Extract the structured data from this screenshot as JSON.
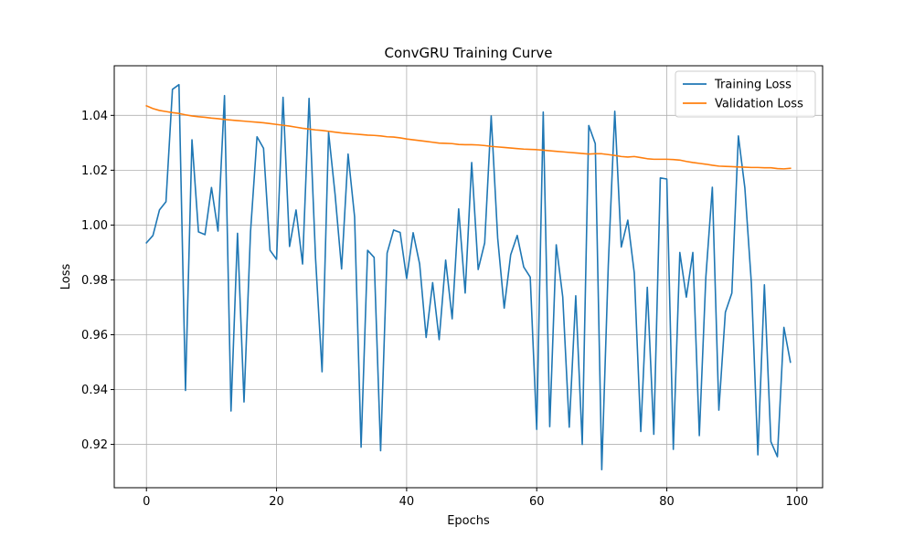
{
  "chart_data": {
    "type": "line",
    "title": "ConvGRU Training Curve",
    "xlabel": "Epochs",
    "ylabel": "Loss",
    "xlim": [
      -4.95,
      103.95
    ],
    "ylim": [
      0.9042,
      1.0581
    ],
    "xticks": [
      0,
      20,
      40,
      60,
      80,
      100
    ],
    "yticks": [
      0.92,
      0.94,
      0.96,
      0.98,
      1.0,
      1.02,
      1.04
    ],
    "ytick_labels": [
      "0.92",
      "0.94",
      "0.96",
      "0.98",
      "1.00",
      "1.02",
      "1.04"
    ],
    "grid": true,
    "legend_position": "top-right",
    "x": [
      0,
      1,
      2,
      3,
      4,
      5,
      6,
      7,
      8,
      9,
      10,
      11,
      12,
      13,
      14,
      15,
      16,
      17,
      18,
      19,
      20,
      21,
      22,
      23,
      24,
      25,
      26,
      27,
      28,
      29,
      30,
      31,
      32,
      33,
      34,
      35,
      36,
      37,
      38,
      39,
      40,
      41,
      42,
      43,
      44,
      45,
      46,
      47,
      48,
      49,
      50,
      51,
      52,
      53,
      54,
      55,
      56,
      57,
      58,
      59,
      60,
      61,
      62,
      63,
      64,
      65,
      66,
      67,
      68,
      69,
      70,
      71,
      72,
      73,
      74,
      75,
      76,
      77,
      78,
      79,
      80,
      81,
      82,
      83,
      84,
      85,
      86,
      87,
      88,
      89,
      90,
      91,
      92,
      93,
      94,
      95,
      96,
      97,
      98,
      99
    ],
    "series": [
      {
        "name": "Training Loss",
        "color": "#1f77b4",
        "values": [
          0.9935,
          0.9962,
          1.0055,
          1.0085,
          1.0495,
          1.0512,
          0.9397,
          1.0311,
          0.9975,
          0.9965,
          1.0137,
          0.9978,
          1.0472,
          0.9322,
          0.997,
          0.9355,
          0.9975,
          1.0322,
          1.028,
          0.9908,
          0.9875,
          1.0466,
          0.9922,
          1.0055,
          0.9858,
          1.0462,
          0.9878,
          0.9465,
          1.0338,
          1.0112,
          0.984,
          1.0259,
          1.003,
          0.919,
          0.9908,
          0.9882,
          0.9177,
          0.9898,
          0.9982,
          0.9973,
          0.9805,
          0.9972,
          0.9858,
          0.959,
          0.979,
          0.9582,
          0.9872,
          0.9658,
          1.0059,
          0.9752,
          1.0228,
          0.9838,
          0.9935,
          1.0398,
          0.9952,
          0.9697,
          0.9892,
          0.9962,
          0.9847,
          0.981,
          0.9255,
          1.0412,
          0.9265,
          0.9928,
          0.9738,
          0.9263,
          0.9742,
          0.92,
          1.0363,
          1.0297,
          0.9108,
          0.9852,
          1.0415,
          0.992,
          1.0018,
          0.9825,
          0.9247,
          0.9773,
          0.9237,
          1.0172,
          1.0168,
          0.9182,
          0.99,
          0.9737,
          0.99,
          0.9232,
          0.981,
          1.0138,
          0.9325,
          0.9682,
          0.9752,
          1.0325,
          1.0135,
          0.9788,
          0.9162,
          0.9782,
          0.921,
          0.9155,
          0.9627,
          0.95
        ]
      },
      {
        "name": "Validation Loss",
        "color": "#ff7f0e",
        "values": [
          1.0435,
          1.0425,
          1.0418,
          1.0414,
          1.041,
          1.0407,
          1.0402,
          1.0398,
          1.0395,
          1.0393,
          1.039,
          1.0388,
          1.0385,
          1.0383,
          1.0381,
          1.0379,
          1.0377,
          1.0375,
          1.0373,
          1.037,
          1.0367,
          1.0364,
          1.0361,
          1.0357,
          1.0353,
          1.035,
          1.0347,
          1.0345,
          1.0342,
          1.0339,
          1.0336,
          1.0334,
          1.0332,
          1.033,
          1.0328,
          1.0327,
          1.0325,
          1.0322,
          1.0321,
          1.0318,
          1.0314,
          1.0311,
          1.0308,
          1.0305,
          1.0302,
          1.0299,
          1.0298,
          1.0297,
          1.0294,
          1.0293,
          1.0293,
          1.0292,
          1.029,
          1.0287,
          1.0285,
          1.0283,
          1.0281,
          1.0279,
          1.0277,
          1.0276,
          1.0275,
          1.0273,
          1.0271,
          1.0269,
          1.0267,
          1.0265,
          1.0263,
          1.0261,
          1.0259,
          1.026,
          1.026,
          1.0257,
          1.0254,
          1.025,
          1.0248,
          1.025,
          1.0246,
          1.0242,
          1.024,
          1.024,
          1.024,
          1.0239,
          1.0237,
          1.0232,
          1.0228,
          1.0225,
          1.0222,
          1.0218,
          1.0215,
          1.0214,
          1.0213,
          1.0212,
          1.0211,
          1.021,
          1.021,
          1.0209,
          1.0209,
          1.0206,
          1.0205,
          1.0207
        ]
      }
    ]
  }
}
